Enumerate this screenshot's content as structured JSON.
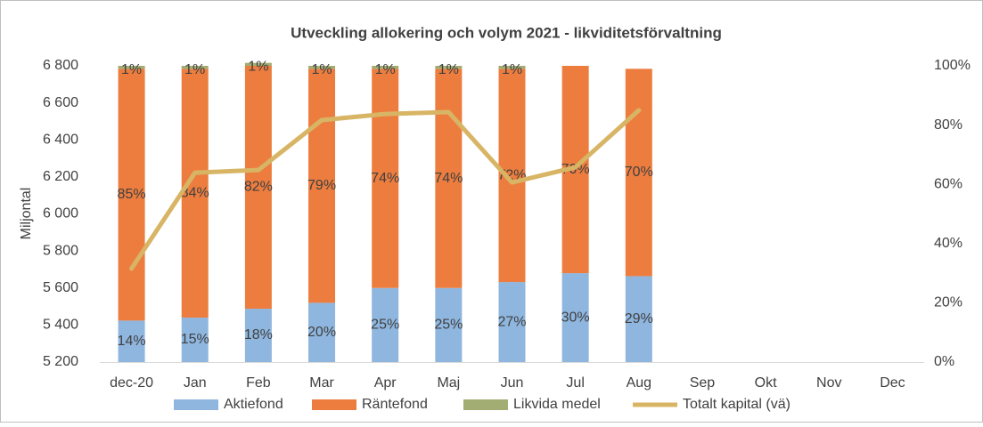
{
  "chart_data": {
    "type": "bar",
    "stacked": true,
    "title": "Utveckling allokering och volym 2021 - likviditetsförvaltning",
    "y_label": "Miljontal",
    "categories": [
      "dec-20",
      "Jan",
      "Feb",
      "Mar",
      "Apr",
      "Maj",
      "Jun",
      "Jul",
      "Aug",
      "Sep",
      "Okt",
      "Nov",
      "Dec"
    ],
    "series": [
      {
        "name": "Aktiefond",
        "color": "#8fb6df",
        "axis": "y2",
        "values": [
          14,
          15,
          18,
          20,
          25,
          25,
          27,
          30,
          29,
          null,
          null,
          null,
          null
        ],
        "value_labels": [
          "14%",
          "15%",
          "18%",
          "20%",
          "25%",
          "25%",
          "27%",
          "30%",
          "29%",
          null,
          null,
          null,
          null
        ]
      },
      {
        "name": "Räntefond",
        "color": "#ec7d3f",
        "axis": "y2",
        "values": [
          85,
          84,
          82,
          79,
          74,
          74,
          72,
          70,
          70,
          null,
          null,
          null,
          null
        ],
        "value_labels": [
          "85%",
          "84%",
          "82%",
          "79%",
          "74%",
          "74%",
          "72%",
          "70%",
          "70%",
          null,
          null,
          null,
          null
        ]
      },
      {
        "name": "Likvida medel",
        "color": "#a1ad72",
        "axis": "y2",
        "values": [
          1,
          1,
          1,
          1,
          1,
          1,
          1,
          0,
          0,
          null,
          null,
          null,
          null
        ],
        "value_labels": [
          "1%",
          "1%",
          "1%",
          "1%",
          "1%",
          "1%",
          "1%",
          null,
          null,
          null,
          null,
          null,
          null
        ]
      },
      {
        "name": "Totalt kapital (vä)",
        "color": "#d8b565",
        "type": "line",
        "axis": "y",
        "values": [
          5705,
          6223,
          6237,
          6507,
          6540,
          6550,
          6170,
          6252,
          6560,
          null,
          null,
          null,
          null
        ]
      }
    ],
    "ylim": [
      5200,
      6800
    ],
    "yticks": [
      {
        "value": 5200,
        "label": "5 200"
      },
      {
        "value": 5400,
        "label": "5 400"
      },
      {
        "value": 5600,
        "label": "5 600"
      },
      {
        "value": 5800,
        "label": "5 800"
      },
      {
        "value": 6000,
        "label": "6 000"
      },
      {
        "value": 6200,
        "label": "6 200"
      },
      {
        "value": 6400,
        "label": "6 400"
      },
      {
        "value": 6600,
        "label": "6 600"
      },
      {
        "value": 6800,
        "label": "6 800"
      }
    ],
    "y2lim": [
      0,
      100
    ],
    "y2ticks": [
      {
        "value": 0,
        "label": "0%"
      },
      {
        "value": 20,
        "label": "20%"
      },
      {
        "value": 40,
        "label": "40%"
      },
      {
        "value": 60,
        "label": "60%"
      },
      {
        "value": 80,
        "label": "80%"
      },
      {
        "value": 100,
        "label": "100%"
      }
    ],
    "legend": "bottom"
  }
}
